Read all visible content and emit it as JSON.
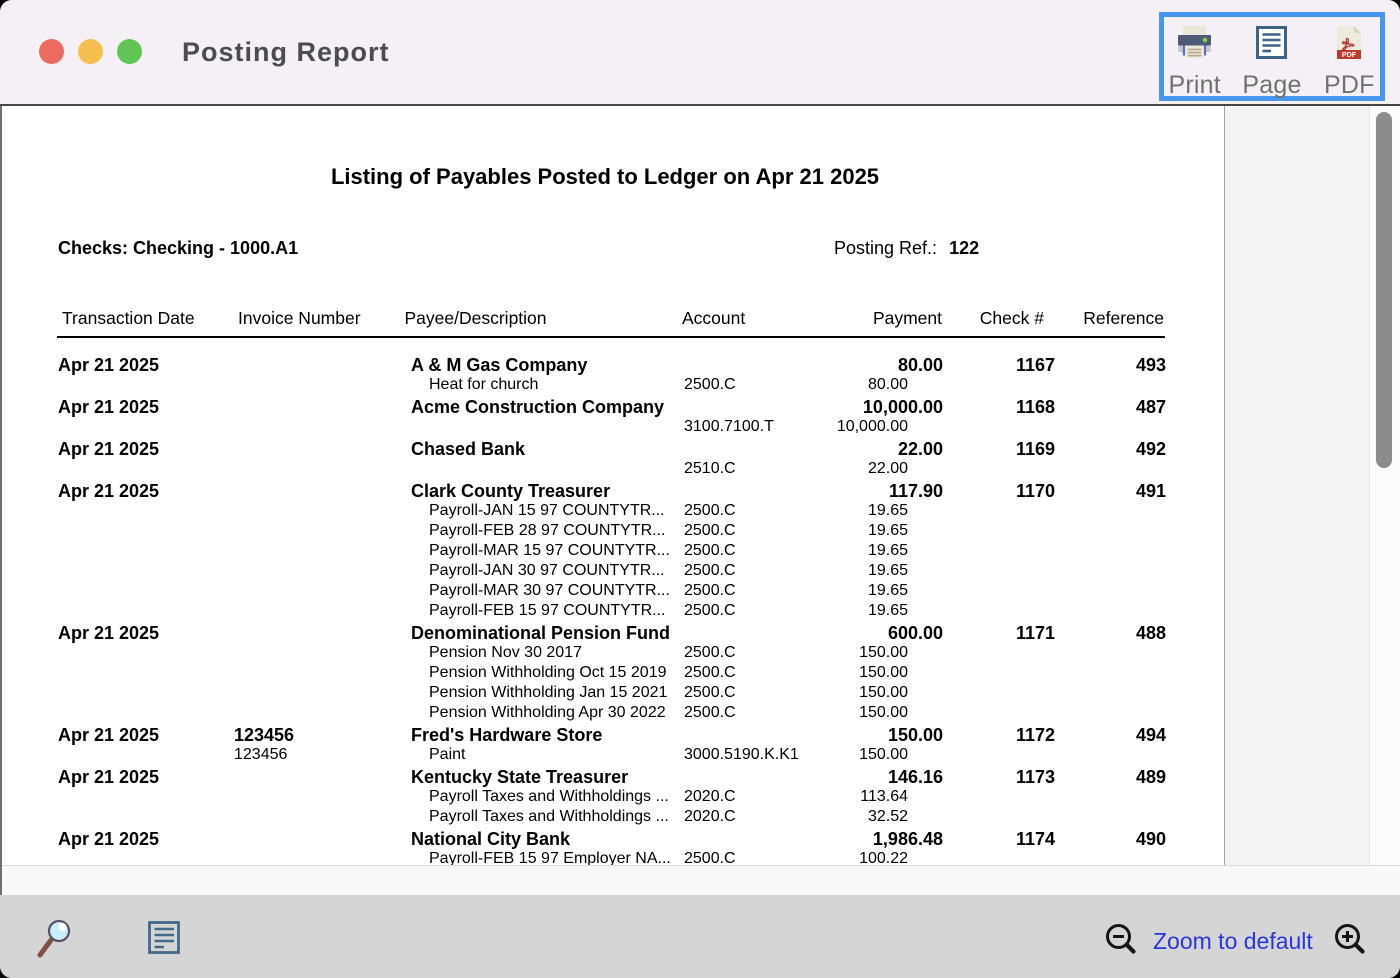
{
  "window": {
    "title": "Posting Report"
  },
  "toolbar": {
    "print_label": "Print",
    "page_label": "Page",
    "pdf_label": "PDF",
    "pdf_badge": "PDF",
    "border_color": "#4596ef"
  },
  "report": {
    "title": "Listing of Payables Posted to Ledger on Apr 21 2025",
    "account_line": "Checks: Checking - 1000.A1",
    "posting_ref_label": "Posting Ref.:",
    "posting_ref_value": "122",
    "columns": {
      "date": "Transaction Date",
      "invoice": "Invoice Number",
      "payee": "Payee/Description",
      "account": "Account",
      "payment": "Payment",
      "check": "Check #",
      "reference": "Reference"
    },
    "entries": [
      {
        "date": "Apr 21 2025",
        "invoice": "",
        "payee": "A & M Gas Company",
        "payment": "80.00",
        "check": "1167",
        "reference": "493",
        "details": [
          {
            "invoice": "",
            "description": "Heat for church",
            "account": "2500.C",
            "amount": "80.00"
          }
        ]
      },
      {
        "date": "Apr 21 2025",
        "invoice": "",
        "payee": "Acme Construction Company",
        "payment": "10,000.00",
        "check": "1168",
        "reference": "487",
        "details": [
          {
            "invoice": "",
            "description": "",
            "account": "3100.7100.T",
            "amount": "10,000.00"
          }
        ]
      },
      {
        "date": "Apr 21 2025",
        "invoice": "",
        "payee": "Chased Bank",
        "payment": "22.00",
        "check": "1169",
        "reference": "492",
        "details": [
          {
            "invoice": "",
            "description": "",
            "account": "2510.C",
            "amount": "22.00"
          }
        ]
      },
      {
        "date": "Apr 21 2025",
        "invoice": "",
        "payee": "Clark County Treasurer",
        "payment": "117.90",
        "check": "1170",
        "reference": "491",
        "details": [
          {
            "invoice": "",
            "description": "Payroll-JAN 15 97 COUNTYTR...",
            "account": "2500.C",
            "amount": "19.65"
          },
          {
            "invoice": "",
            "description": "Payroll-FEB 28 97 COUNTYTR...",
            "account": "2500.C",
            "amount": "19.65"
          },
          {
            "invoice": "",
            "description": "Payroll-MAR 15 97 COUNTYTR...",
            "account": "2500.C",
            "amount": "19.65"
          },
          {
            "invoice": "",
            "description": "Payroll-JAN 30 97 COUNTYTR...",
            "account": "2500.C",
            "amount": "19.65"
          },
          {
            "invoice": "",
            "description": "Payroll-MAR 30 97 COUNTYTR...",
            "account": "2500.C",
            "amount": "19.65"
          },
          {
            "invoice": "",
            "description": "Payroll-FEB 15 97 COUNTYTR...",
            "account": "2500.C",
            "amount": "19.65"
          }
        ]
      },
      {
        "date": "Apr 21 2025",
        "invoice": "",
        "payee": "Denominational Pension Fund",
        "payment": "600.00",
        "check": "1171",
        "reference": "488",
        "details": [
          {
            "invoice": "",
            "description": "Pension Nov 30 2017",
            "account": "2500.C",
            "amount": "150.00"
          },
          {
            "invoice": "",
            "description": "Pension Withholding Oct 15 2019",
            "account": "2500.C",
            "amount": "150.00"
          },
          {
            "invoice": "",
            "description": "Pension Withholding Jan 15 2021",
            "account": "2500.C",
            "amount": "150.00"
          },
          {
            "invoice": "",
            "description": "Pension Withholding Apr 30 2022",
            "account": "2500.C",
            "amount": "150.00"
          }
        ]
      },
      {
        "date": "Apr 21 2025",
        "invoice": "123456",
        "payee": "Fred's Hardware Store",
        "payment": "150.00",
        "check": "1172",
        "reference": "494",
        "details": [
          {
            "invoice": "123456",
            "description": "Paint",
            "account": "3000.5190.K.K1",
            "amount": "150.00"
          }
        ]
      },
      {
        "date": "Apr 21 2025",
        "invoice": "",
        "payee": "Kentucky State Treasurer",
        "payment": "146.16",
        "check": "1173",
        "reference": "489",
        "details": [
          {
            "invoice": "",
            "description": "Payroll Taxes and Withholdings ...",
            "account": "2020.C",
            "amount": "113.64"
          },
          {
            "invoice": "",
            "description": "Payroll Taxes and Withholdings ...",
            "account": "2020.C",
            "amount": "32.52"
          }
        ]
      },
      {
        "date": "Apr 21 2025",
        "invoice": "",
        "payee": "National City Bank",
        "payment": "1,986.48",
        "check": "1174",
        "reference": "490",
        "details": [
          {
            "invoice": "",
            "description": "Payroll-FEB 15 97 Employer NA...",
            "account": "2500.C",
            "amount": "100.22"
          }
        ]
      }
    ]
  },
  "statusbar": {
    "zoom_default_label": "Zoom to default",
    "zoom_label_color": "#2936df"
  }
}
